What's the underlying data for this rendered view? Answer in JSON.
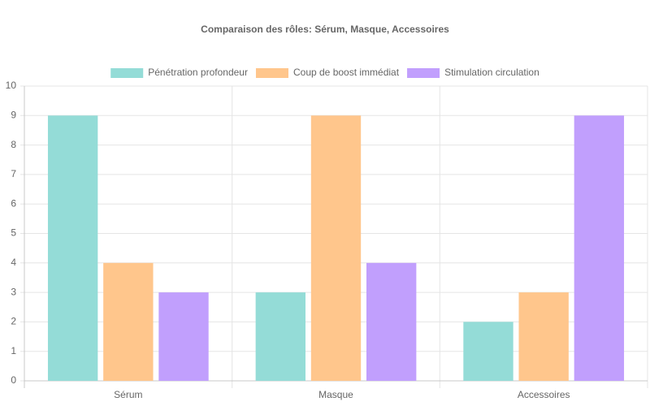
{
  "chart_data": {
    "type": "bar",
    "title": "Comparaison des rôles: Sérum, Masque, Accessoires",
    "categories": [
      "Sérum",
      "Masque",
      "Accessoires"
    ],
    "series": [
      {
        "name": "Pénétration profondeur",
        "color": "#94dcd7",
        "values": [
          9,
          3,
          2
        ]
      },
      {
        "name": "Coup de boost immédiat",
        "color": "#ffc68c",
        "values": [
          4,
          9,
          3
        ]
      },
      {
        "name": "Stimulation circulation",
        "color": "#c19ffd",
        "values": [
          3,
          4,
          9
        ]
      }
    ],
    "ylim": [
      0,
      10
    ],
    "yticks": [
      0,
      1,
      2,
      3,
      4,
      5,
      6,
      7,
      8,
      9,
      10
    ],
    "grid": true,
    "legend": "top"
  }
}
